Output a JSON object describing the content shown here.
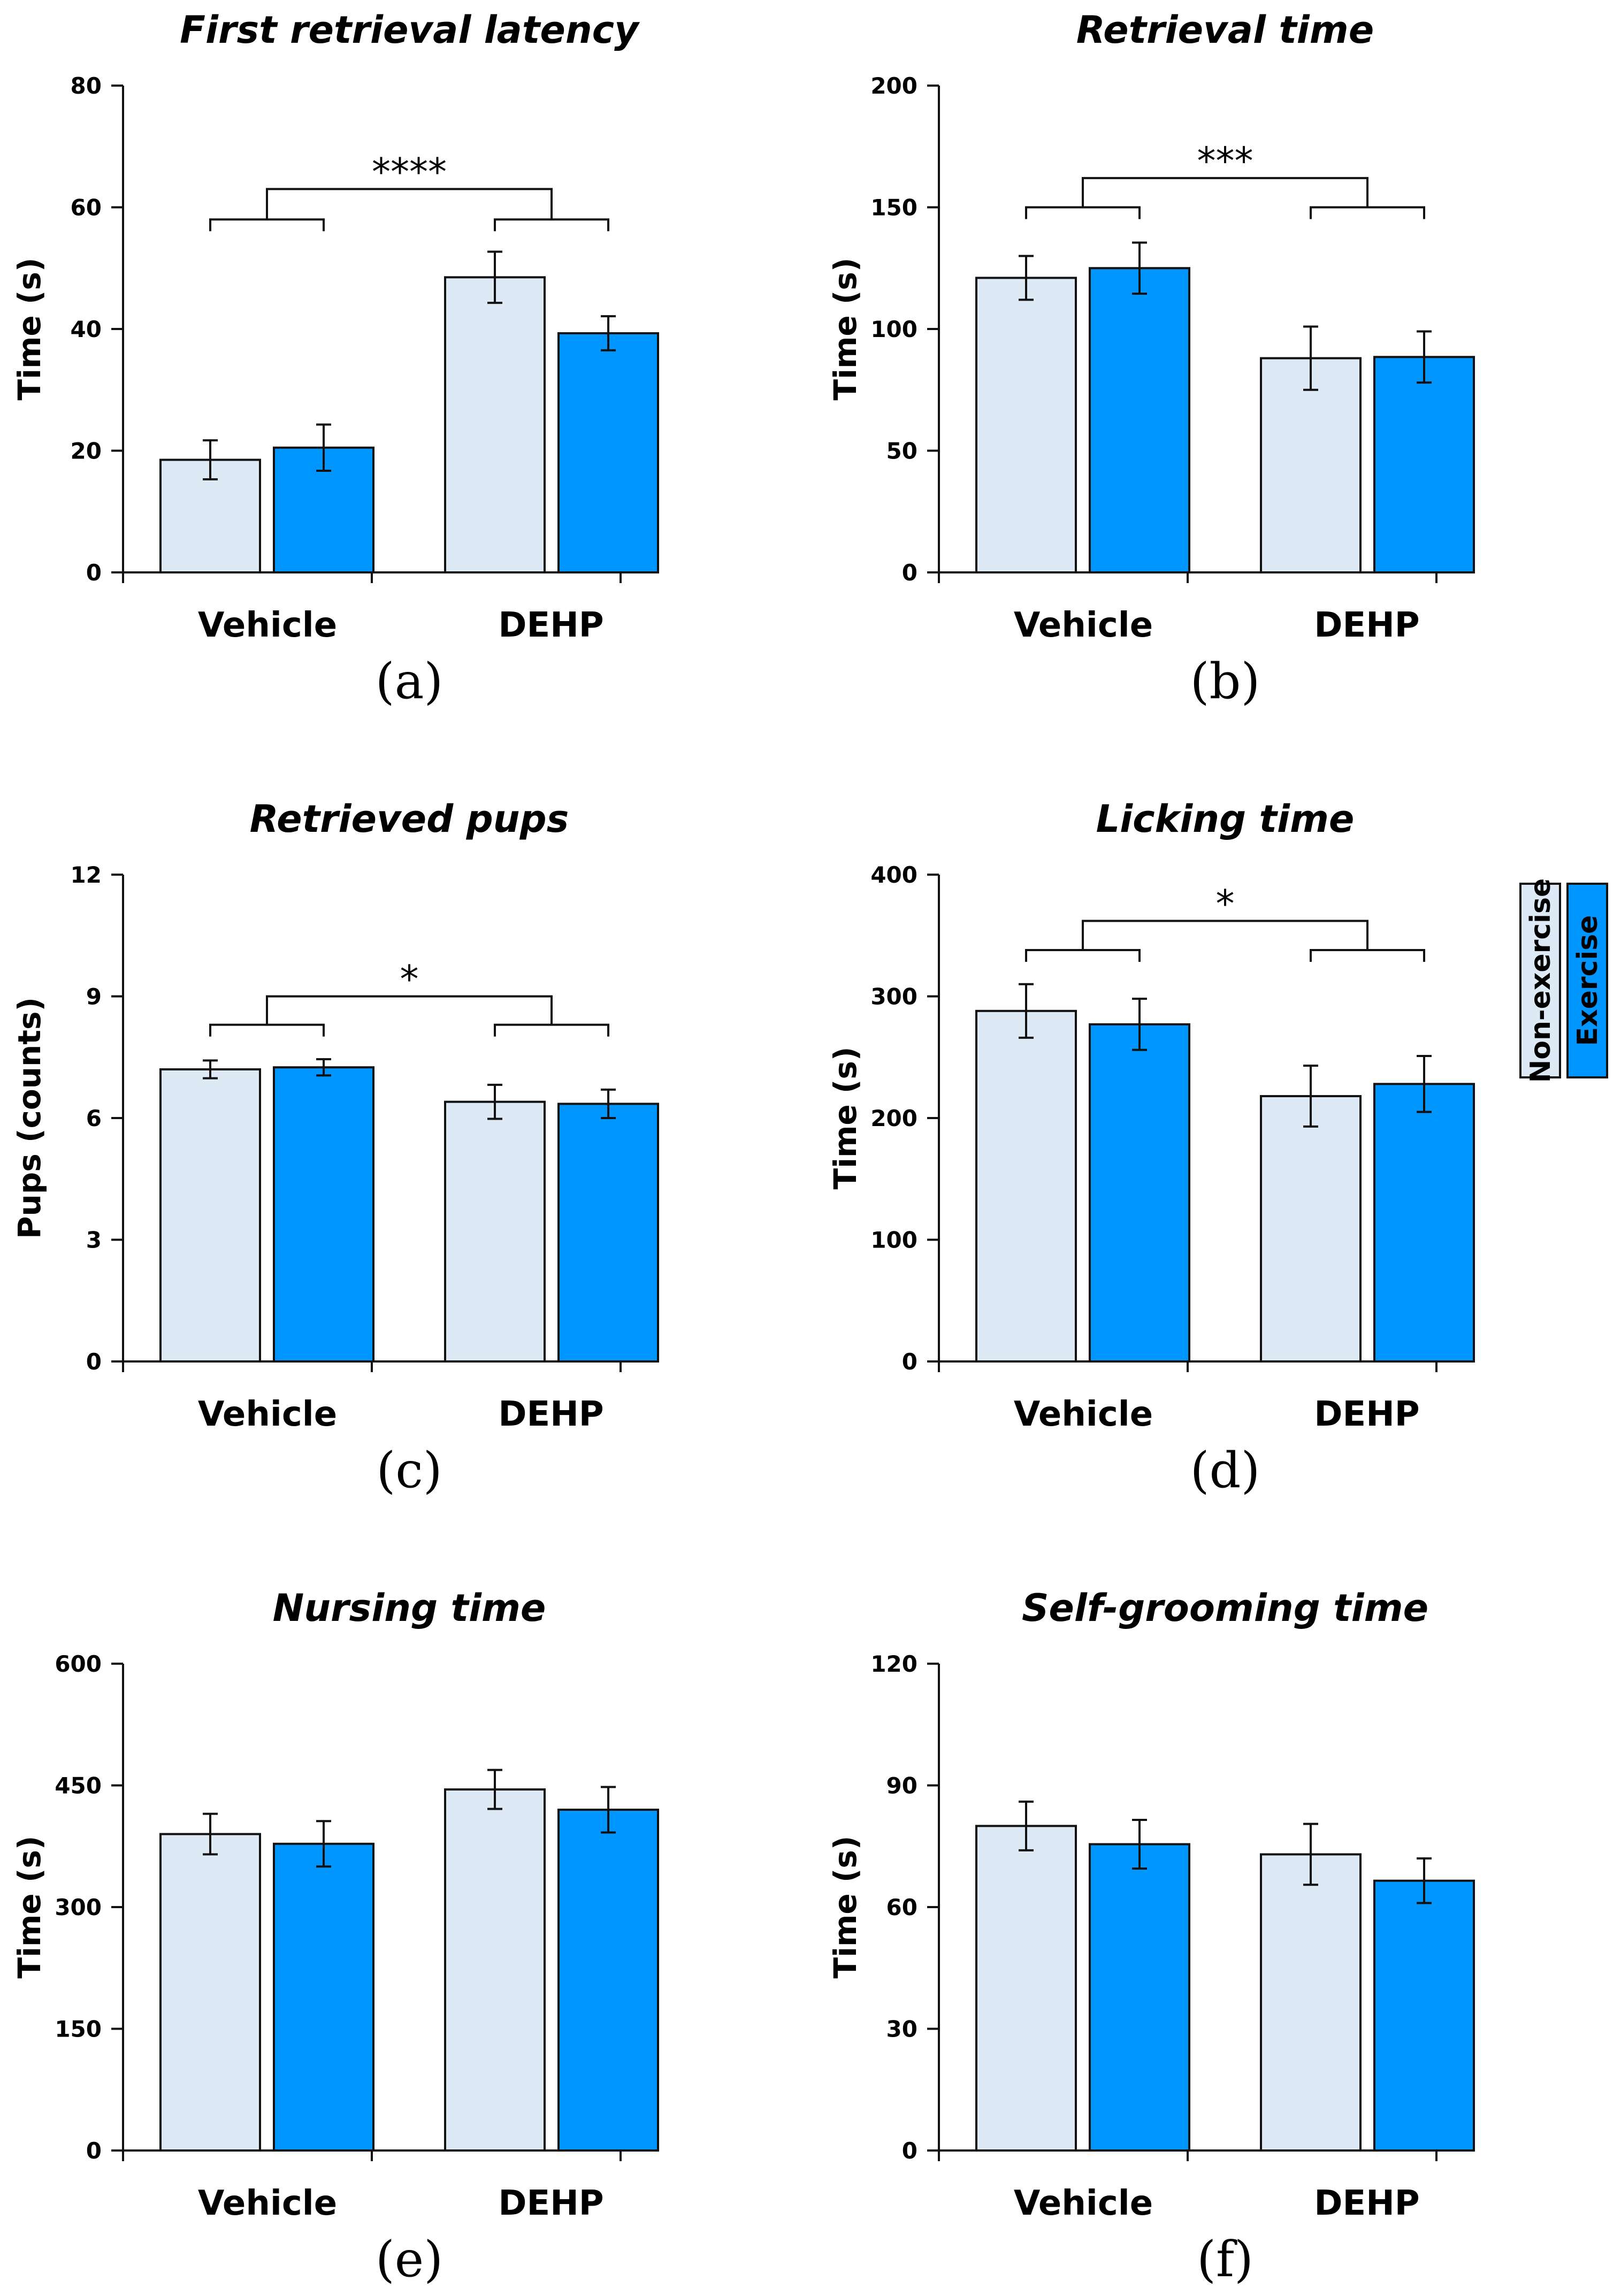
{
  "colors": {
    "non_exercise": "#dde9f5",
    "exercise": "#0096ff",
    "stroke": "#111111"
  },
  "legend": {
    "non_exercise": "Non-exercise",
    "exercise": "Exercise"
  },
  "chart_data": [
    {
      "type": "bar",
      "panel": "(a)",
      "title": "First retrieval latency",
      "categories": [
        "Vehicle",
        "DEHP"
      ],
      "ylabel": "Time (s)",
      "ylim": [
        0,
        80
      ],
      "yticks": [
        0,
        20,
        40,
        60,
        80
      ],
      "series": [
        {
          "name": "Non-exercise",
          "values": [
            18.5,
            48.5
          ],
          "errors": [
            3.2,
            4.2
          ]
        },
        {
          "name": "Exercise",
          "values": [
            20.5,
            39.3
          ],
          "errors": [
            3.8,
            2.8
          ]
        }
      ],
      "significance": {
        "label": "****",
        "level_left": 58,
        "level_right": 58,
        "level_top": 63
      }
    },
    {
      "type": "bar",
      "panel": "(b)",
      "title": "Retrieval time",
      "categories": [
        "Vehicle",
        "DEHP"
      ],
      "ylabel": "Time (s)",
      "ylim": [
        0,
        200
      ],
      "yticks": [
        0,
        50,
        100,
        150,
        200
      ],
      "series": [
        {
          "name": "Non-exercise",
          "values": [
            121,
            88
          ],
          "errors": [
            9,
            13
          ]
        },
        {
          "name": "Exercise",
          "values": [
            125,
            88.5
          ],
          "errors": [
            10.5,
            10.5
          ]
        }
      ],
      "significance": {
        "label": "***",
        "level_left": 150,
        "level_right": 150,
        "level_top": 162
      }
    },
    {
      "type": "bar",
      "panel": "(c)",
      "title": "Retrieved pups",
      "categories": [
        "Vehicle",
        "DEHP"
      ],
      "ylabel": "Pups (counts)",
      "ylim": [
        0,
        12
      ],
      "yticks": [
        0,
        3,
        6,
        9,
        12
      ],
      "series": [
        {
          "name": "Non-exercise",
          "values": [
            7.2,
            6.4
          ],
          "errors": [
            0.22,
            0.42
          ]
        },
        {
          "name": "Exercise",
          "values": [
            7.25,
            6.35
          ],
          "errors": [
            0.2,
            0.35
          ]
        }
      ],
      "significance": {
        "label": "*",
        "level_left": 8.3,
        "level_right": 8.3,
        "level_top": 9.0
      }
    },
    {
      "type": "bar",
      "panel": "(d)",
      "title": "Licking time",
      "categories": [
        "Vehicle",
        "DEHP"
      ],
      "ylabel": "Time (s)",
      "ylim": [
        0,
        400
      ],
      "yticks": [
        0,
        100,
        200,
        300,
        400
      ],
      "series": [
        {
          "name": "Non-exercise",
          "values": [
            288,
            218
          ],
          "errors": [
            22,
            25
          ]
        },
        {
          "name": "Exercise",
          "values": [
            277,
            228
          ],
          "errors": [
            21,
            23
          ]
        }
      ],
      "significance": {
        "label": "*",
        "level_left": 338,
        "level_right": 338,
        "level_top": 362
      }
    },
    {
      "type": "bar",
      "panel": "(e)",
      "title": "Nursing time",
      "categories": [
        "Vehicle",
        "DEHP"
      ],
      "ylabel": "Time (s)",
      "ylim": [
        0,
        600
      ],
      "yticks": [
        0,
        150,
        300,
        450,
        600
      ],
      "series": [
        {
          "name": "Non-exercise",
          "values": [
            390,
            445
          ],
          "errors": [
            25,
            24
          ]
        },
        {
          "name": "Exercise",
          "values": [
            378,
            420
          ],
          "errors": [
            28,
            28
          ]
        }
      ],
      "significance": null
    },
    {
      "type": "bar",
      "panel": "(f)",
      "title": "Self-grooming time",
      "categories": [
        "Vehicle",
        "DEHP"
      ],
      "ylabel": "Time (s)",
      "ylim": [
        0,
        120
      ],
      "yticks": [
        0,
        30,
        60,
        90,
        120
      ],
      "series": [
        {
          "name": "Non-exercise",
          "values": [
            80,
            73
          ],
          "errors": [
            6,
            7.5
          ]
        },
        {
          "name": "Exercise",
          "values": [
            75.5,
            66.5
          ],
          "errors": [
            6,
            5.5
          ]
        }
      ],
      "significance": null
    }
  ]
}
